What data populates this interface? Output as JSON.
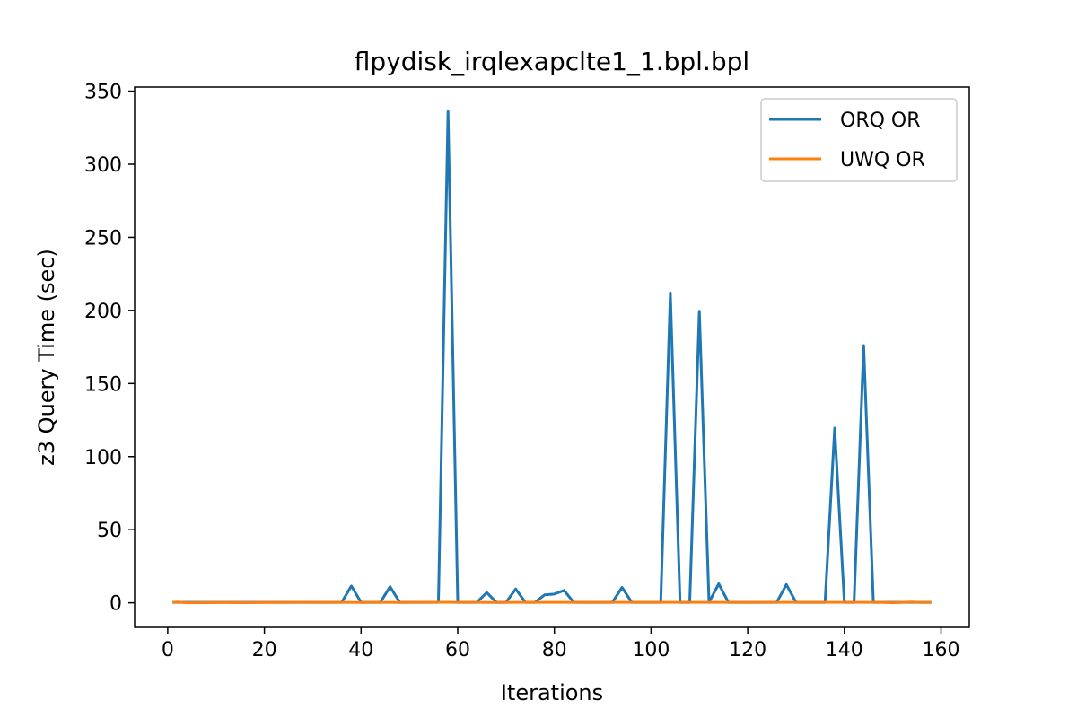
{
  "chart_data": {
    "type": "line",
    "title": "flpydisk_irqlexapclte1_1.bpl.bpl",
    "xlabel": "Iterations",
    "ylabel": "z3 Query Time (sec)",
    "xlim": [
      -6.85,
      165.85
    ],
    "ylim": [
      -16.8,
      352.8
    ],
    "xticks": [
      0,
      20,
      40,
      60,
      80,
      100,
      120,
      140,
      160
    ],
    "yticks": [
      0,
      50,
      100,
      150,
      200,
      250,
      300,
      350
    ],
    "grid": false,
    "legend_position": "top-right",
    "series": [
      {
        "name": "ORQ OR",
        "color": "#1f77b4",
        "points": [
          [
            1,
            0.3
          ],
          [
            2,
            0.3
          ],
          [
            4,
            0.3
          ],
          [
            6,
            0.3
          ],
          [
            8,
            0.3
          ],
          [
            10,
            0.3
          ],
          [
            12,
            0.3
          ],
          [
            14,
            0.3
          ],
          [
            16,
            0.3
          ],
          [
            18,
            0.3
          ],
          [
            20,
            0.3
          ],
          [
            22,
            0.3
          ],
          [
            24,
            0.3
          ],
          [
            26,
            0.3
          ],
          [
            28,
            0.3
          ],
          [
            30,
            0.3
          ],
          [
            32,
            0.3
          ],
          [
            34,
            0.3
          ],
          [
            36,
            0.3
          ],
          [
            38,
            11.5
          ],
          [
            40,
            0.3
          ],
          [
            42,
            0.3
          ],
          [
            44,
            0.3
          ],
          [
            46,
            11
          ],
          [
            48,
            0.3
          ],
          [
            50,
            0.3
          ],
          [
            52,
            0.3
          ],
          [
            54,
            0.3
          ],
          [
            56,
            0.3
          ],
          [
            58,
            336
          ],
          [
            60,
            0.3
          ],
          [
            62,
            0.3
          ],
          [
            64,
            0.3
          ],
          [
            66,
            7
          ],
          [
            68,
            0.3
          ],
          [
            70,
            0.3
          ],
          [
            72,
            9.5
          ],
          [
            74,
            0.3
          ],
          [
            76,
            0.3
          ],
          [
            78,
            5.5
          ],
          [
            80,
            6
          ],
          [
            82,
            8.5
          ],
          [
            84,
            0.3
          ],
          [
            86,
            0.3
          ],
          [
            88,
            0.3
          ],
          [
            90,
            0.3
          ],
          [
            92,
            0.3
          ],
          [
            94,
            10.5
          ],
          [
            96,
            0.3
          ],
          [
            98,
            0.3
          ],
          [
            100,
            0.3
          ],
          [
            102,
            0.3
          ],
          [
            104,
            212
          ],
          [
            106,
            0.3
          ],
          [
            108,
            0.3
          ],
          [
            110,
            199.5
          ],
          [
            112,
            0.3
          ],
          [
            114,
            13
          ],
          [
            116,
            0.3
          ],
          [
            118,
            0.3
          ],
          [
            120,
            0.3
          ],
          [
            122,
            0.3
          ],
          [
            124,
            0.3
          ],
          [
            126,
            0.3
          ],
          [
            128,
            12.5
          ],
          [
            130,
            0.3
          ],
          [
            132,
            0.3
          ],
          [
            134,
            0.3
          ],
          [
            136,
            0.3
          ],
          [
            138,
            119.5
          ],
          [
            140,
            0.3
          ],
          [
            142,
            0.3
          ],
          [
            144,
            176
          ],
          [
            146,
            0.3
          ],
          [
            148,
            0.3
          ],
          [
            150,
            0.3
          ],
          [
            152,
            0.3
          ],
          [
            154,
            0.3
          ],
          [
            156,
            0.3
          ],
          [
            158,
            0.3
          ]
        ]
      },
      {
        "name": "UWQ OR",
        "color": "#ff7f0e",
        "points": [
          [
            1,
            0.2
          ],
          [
            2,
            0.5
          ],
          [
            4,
            0
          ],
          [
            8,
            0.1
          ],
          [
            12,
            0.2
          ],
          [
            16,
            0.1
          ],
          [
            20,
            0.2
          ],
          [
            24,
            0.2
          ],
          [
            28,
            0.3
          ],
          [
            32,
            0.2
          ],
          [
            36,
            0.3
          ],
          [
            40,
            0.2
          ],
          [
            44,
            0.3
          ],
          [
            48,
            0.2
          ],
          [
            52,
            0.3
          ],
          [
            56,
            0.4
          ],
          [
            60,
            0.3
          ],
          [
            64,
            0.3
          ],
          [
            68,
            0.2
          ],
          [
            72,
            0.3
          ],
          [
            76,
            0.3
          ],
          [
            80,
            0.3
          ],
          [
            84,
            0.3
          ],
          [
            88,
            0.2
          ],
          [
            92,
            0.3
          ],
          [
            96,
            0.3
          ],
          [
            100,
            0.3
          ],
          [
            104,
            0.3
          ],
          [
            108,
            0.3
          ],
          [
            112,
            0.3
          ],
          [
            116,
            0.3
          ],
          [
            120,
            0.2
          ],
          [
            124,
            0.3
          ],
          [
            128,
            0.3
          ],
          [
            132,
            0.3
          ],
          [
            136,
            0.3
          ],
          [
            140,
            0.3
          ],
          [
            144,
            0.3
          ],
          [
            148,
            0.3
          ],
          [
            150,
            0
          ],
          [
            152,
            0.3
          ],
          [
            154,
            0.6
          ],
          [
            156,
            0.2
          ],
          [
            158,
            0.2
          ]
        ]
      }
    ]
  }
}
